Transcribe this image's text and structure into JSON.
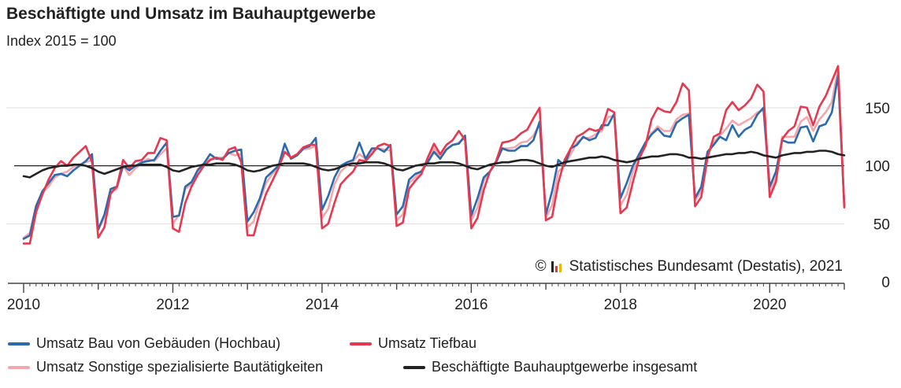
{
  "title": "Beschäftigte und Umsatz im Bauhauptgewerbe",
  "subtitle": "Index 2015 = 100",
  "source": "Statistisches Bundesamt (Destatis), 2021",
  "source_symbol": "©",
  "colors": {
    "hochbau": "#2a6aad",
    "tiefbau": "#e8384f",
    "sonstige": "#f5a7ad",
    "beschaeftigte": "#222222",
    "grid": "#dddddd",
    "reference": "#222222"
  },
  "chart_data": {
    "type": "line",
    "title": "Beschäftigte und Umsatz im Bauhauptgewerbe",
    "subtitle": "Index 2015 = 100",
    "xlabel": "",
    "ylabel": "",
    "x_range": [
      "2010-01",
      "2021-01"
    ],
    "ylim": [
      0,
      190
    ],
    "y_ticks": [
      0,
      50,
      100,
      150
    ],
    "x_ticks": [
      "2010",
      "2012",
      "2014",
      "2016",
      "2018",
      "2020"
    ],
    "reference_line": 100,
    "grid": "horizontal",
    "legend_position": "bottom",
    "series": [
      {
        "name": "Umsatz Bau von Gebäuden (Hochbau)",
        "key": "hochbau",
        "annual": [
          [
            37,
            40,
            65,
            78,
            85,
            92,
            93,
            91,
            96,
            100,
            104,
            110
          ],
          [
            45,
            58,
            80,
            82,
            100,
            96,
            100,
            103,
            104,
            105,
            113,
            120
          ],
          [
            56,
            57,
            82,
            86,
            96,
            102,
            110,
            106,
            106,
            111,
            113,
            114
          ],
          [
            52,
            60,
            72,
            90,
            95,
            100,
            119,
            106,
            109,
            115,
            117,
            124
          ],
          [
            62,
            74,
            90,
            100,
            103,
            105,
            120,
            106,
            115,
            115,
            112,
            118
          ],
          [
            58,
            65,
            88,
            93,
            95,
            103,
            112,
            106,
            114,
            118,
            119,
            126
          ],
          [
            57,
            72,
            90,
            95,
            103,
            115,
            113,
            113,
            117,
            117,
            122,
            138
          ],
          [
            58,
            78,
            105,
            100,
            115,
            118,
            125,
            122,
            124,
            135,
            135,
            145
          ],
          [
            72,
            85,
            100,
            110,
            120,
            127,
            132,
            126,
            125,
            137,
            141,
            144
          ],
          [
            72,
            82,
            112,
            118,
            125,
            122,
            135,
            125,
            131,
            134,
            144,
            150
          ],
          [
            82,
            95,
            122,
            120,
            120,
            133,
            134,
            121,
            134,
            136,
            146,
            178
          ],
          [
            65
          ]
        ]
      },
      {
        "name": "Umsatz Tiefbau",
        "key": "tiefbau",
        "annual": [
          [
            33,
            33,
            60,
            75,
            88,
            98,
            104,
            100,
            107,
            112,
            117,
            103
          ],
          [
            38,
            47,
            76,
            82,
            105,
            98,
            104,
            105,
            111,
            111,
            124,
            122
          ],
          [
            46,
            43,
            68,
            82,
            92,
            100,
            105,
            107,
            105,
            114,
            116,
            103
          ],
          [
            40,
            40,
            60,
            76,
            87,
            98,
            112,
            107,
            110,
            116,
            118,
            118
          ],
          [
            46,
            50,
            68,
            84,
            90,
            95,
            105,
            104,
            110,
            117,
            119,
            117
          ],
          [
            48,
            51,
            80,
            87,
            93,
            107,
            119,
            110,
            118,
            122,
            130,
            122
          ],
          [
            46,
            55,
            79,
            95,
            104,
            120,
            121,
            123,
            128,
            131,
            141,
            150
          ],
          [
            53,
            56,
            85,
            105,
            115,
            125,
            128,
            132,
            130,
            132,
            149,
            146
          ],
          [
            59,
            64,
            86,
            106,
            117,
            140,
            150,
            147,
            146,
            155,
            171,
            165
          ],
          [
            65,
            73,
            107,
            125,
            128,
            148,
            155,
            148,
            152,
            158,
            170,
            164
          ],
          [
            73,
            86,
            123,
            130,
            134,
            151,
            150,
            135,
            151,
            160,
            173,
            186
          ],
          [
            64
          ]
        ]
      },
      {
        "name": "Umsatz Sonstige spezialisierte Bautätigkeiten",
        "key": "sonstige",
        "annual": [
          [
            38,
            42,
            66,
            77,
            82,
            90,
            93,
            95,
            99,
            101,
            103,
            105
          ],
          [
            45,
            55,
            78,
            80,
            100,
            92,
            98,
            102,
            106,
            104,
            110,
            115
          ],
          [
            50,
            58,
            80,
            84,
            97,
            102,
            106,
            107,
            107,
            111,
            109,
            110
          ],
          [
            47,
            52,
            70,
            85,
            93,
            98,
            112,
            107,
            110,
            114,
            115,
            117
          ],
          [
            55,
            63,
            84,
            95,
            100,
            104,
            110,
            106,
            113,
            115,
            114,
            113
          ],
          [
            53,
            58,
            85,
            90,
            96,
            104,
            115,
            108,
            114,
            118,
            120,
            124
          ],
          [
            53,
            64,
            87,
            95,
            103,
            115,
            115,
            116,
            120,
            121,
            126,
            136
          ],
          [
            55,
            66,
            95,
            100,
            110,
            120,
            124,
            124,
            127,
            130,
            142,
            143
          ],
          [
            66,
            75,
            95,
            110,
            117,
            128,
            134,
            130,
            130,
            140,
            144,
            145
          ],
          [
            70,
            78,
            109,
            120,
            126,
            132,
            139,
            135,
            138,
            141,
            146,
            148
          ],
          [
            78,
            90,
            125,
            125,
            125,
            138,
            142,
            130,
            140,
            146,
            155,
            184
          ],
          [
            66
          ]
        ]
      },
      {
        "name": "Beschäftigte Bauhauptgewerbe insgesamt",
        "key": "beschaeftigte",
        "annual": [
          [
            91,
            90,
            93,
            96,
            98,
            99,
            100,
            100,
            101,
            101,
            100,
            98
          ],
          [
            95,
            93,
            95,
            97,
            99,
            100,
            100,
            101,
            101,
            101,
            101,
            99
          ],
          [
            96,
            95,
            97,
            99,
            100,
            101,
            101,
            102,
            102,
            102,
            101,
            99
          ],
          [
            96,
            95,
            96,
            98,
            100,
            101,
            102,
            102,
            102,
            102,
            101,
            99
          ],
          [
            97,
            96,
            97,
            99,
            101,
            102,
            102,
            103,
            103,
            103,
            102,
            100
          ],
          [
            97,
            96,
            98,
            100,
            101,
            102,
            102,
            103,
            103,
            103,
            102,
            100
          ],
          [
            98,
            97,
            99,
            101,
            102,
            103,
            103,
            104,
            105,
            105,
            104,
            102
          ],
          [
            100,
            99,
            101,
            103,
            104,
            105,
            106,
            107,
            107,
            108,
            107,
            105
          ],
          [
            104,
            103,
            104,
            106,
            107,
            108,
            108,
            109,
            110,
            110,
            109,
            107
          ],
          [
            107,
            106,
            107,
            108,
            109,
            110,
            110,
            111,
            111,
            112,
            111,
            109
          ],
          [
            108,
            107,
            109,
            110,
            111,
            111,
            112,
            112,
            113,
            113,
            112,
            110
          ],
          [
            109
          ]
        ]
      }
    ]
  }
}
